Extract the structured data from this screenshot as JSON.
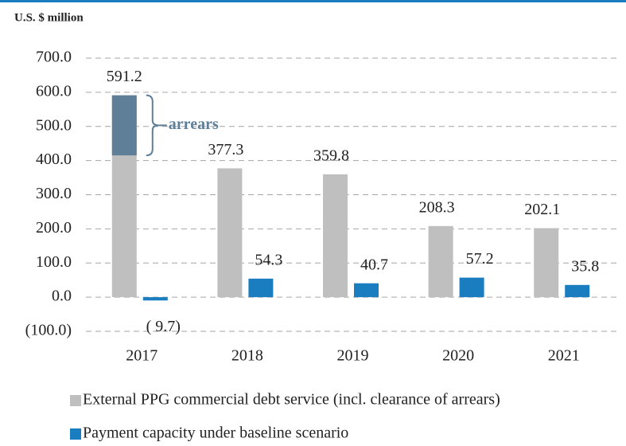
{
  "chart_data": {
    "type": "bar",
    "unit_label": "U.S. $ million",
    "categories": [
      "2017",
      "2018",
      "2019",
      "2020",
      "2021"
    ],
    "series": [
      {
        "name": "External PPG commercial debt service (incl. clearance of arrears)",
        "color": "#bfbfbf",
        "values": [
          591.2,
          377.3,
          359.8,
          208.3,
          202.1
        ],
        "value_labels": [
          "591.2",
          "377.3",
          "359.8",
          "208.3",
          "202.1"
        ]
      },
      {
        "name": "Payment capacity under baseline scenario",
        "color": "#1a7dc0",
        "values": [
          -9.7,
          54.3,
          40.7,
          57.2,
          35.8
        ],
        "value_labels": [
          "( 9.7)",
          "54.3",
          "40.7",
          "57.2",
          "35.8"
        ]
      }
    ],
    "annotation": {
      "text": "arrears",
      "value": 176,
      "color": "#5f7f99"
    },
    "ylim": [
      -100,
      700
    ],
    "yticks": [
      {
        "value": -100,
        "label": "(100.0)"
      },
      {
        "value": 0,
        "label": "0.0"
      },
      {
        "value": 100,
        "label": "100.0"
      },
      {
        "value": 200,
        "label": "200.0"
      },
      {
        "value": 300,
        "label": "300.0"
      },
      {
        "value": 400,
        "label": "400.0"
      },
      {
        "value": 500,
        "label": "500.0"
      },
      {
        "value": 600,
        "label": "600.0"
      },
      {
        "value": 700,
        "label": "700.0"
      }
    ],
    "grid": true
  }
}
